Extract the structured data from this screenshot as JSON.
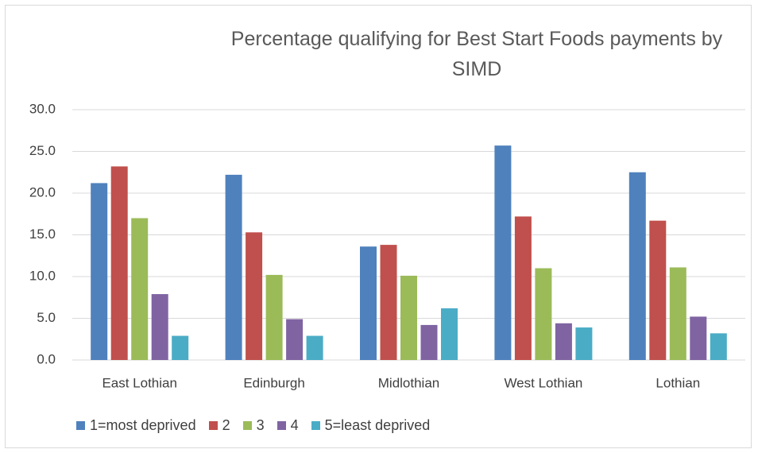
{
  "chart_data": {
    "type": "bar",
    "title": "Percentage qualifying for Best Start Foods payments by SIMD",
    "categories": [
      "East Lothian",
      "Edinburgh",
      "Midlothian",
      "West Lothian",
      "Lothian"
    ],
    "series": [
      {
        "name": "1=most deprived",
        "color": "#4f81bd",
        "values": [
          21.2,
          22.2,
          13.6,
          25.7,
          22.5
        ]
      },
      {
        "name": "2",
        "color": "#c0504d",
        "values": [
          23.2,
          15.3,
          13.8,
          17.2,
          16.7
        ]
      },
      {
        "name": "3",
        "color": "#9bbb59",
        "values": [
          17.0,
          10.2,
          10.1,
          11.0,
          11.1
        ]
      },
      {
        "name": "4",
        "color": "#8064a2",
        "values": [
          7.9,
          4.9,
          4.2,
          4.4,
          5.2
        ]
      },
      {
        "name": "5=least deprived",
        "color": "#4bacc6",
        "values": [
          2.9,
          2.9,
          6.2,
          3.9,
          3.2
        ]
      }
    ],
    "ylim": [
      0,
      30
    ],
    "yticks": [
      {
        "value": 0,
        "label": "0.0"
      },
      {
        "value": 5,
        "label": "5.0"
      },
      {
        "value": 10,
        "label": "10.0"
      },
      {
        "value": 15,
        "label": "15.0"
      },
      {
        "value": 20,
        "label": "20.0"
      },
      {
        "value": 25,
        "label": "25.0"
      },
      {
        "value": 30,
        "label": "30.0"
      }
    ],
    "grid": true,
    "legend": "bottom"
  }
}
